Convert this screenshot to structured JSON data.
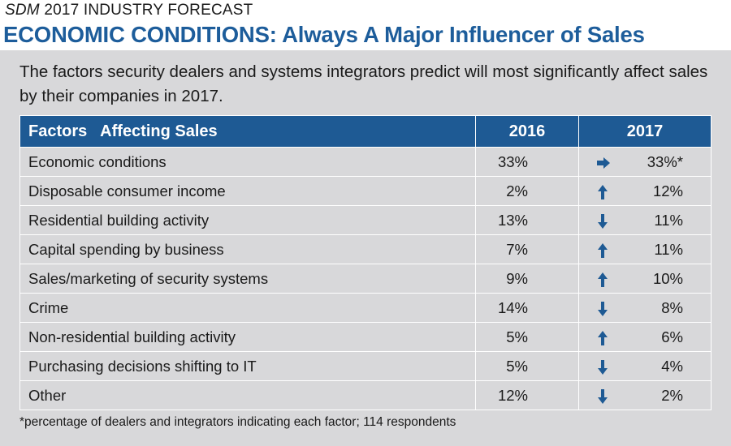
{
  "header": {
    "brand": "SDM",
    "kicker": "2017 INDUSTRY FORECAST",
    "title": "ECONOMIC CONDITIONS: Always A Major Influencer of Sales"
  },
  "intro": "The factors security dealers and systems integrators predict will most significantly affect sales by their companies in 2017.",
  "table": {
    "columns": [
      "Factors   Affecting Sales",
      "2016",
      "2017"
    ],
    "rows": [
      {
        "factor": "Economic conditions",
        "y2016": "33%",
        "y2017": "33%*",
        "trend": "flat"
      },
      {
        "factor": "Disposable consumer income",
        "y2016": "2%",
        "y2017": "12%",
        "trend": "up"
      },
      {
        "factor": "Residential building activity",
        "y2016": "13%",
        "y2017": "11%",
        "trend": "down"
      },
      {
        "factor": "Capital spending by business",
        "y2016": "7%",
        "y2017": "11%",
        "trend": "up"
      },
      {
        "factor": "Sales/marketing of security systems",
        "y2016": "9%",
        "y2017": "10%",
        "trend": "up"
      },
      {
        "factor": "Crime",
        "y2016": "14%",
        "y2017": "8%",
        "trend": "down"
      },
      {
        "factor": "Non-residential building activity",
        "y2016": "5%",
        "y2017": "6%",
        "trend": "up"
      },
      {
        "factor": "Purchasing decisions shifting to IT",
        "y2016": "5%",
        "y2017": "4%",
        "trend": "down"
      },
      {
        "factor": "Other",
        "y2016": "12%",
        "y2017": "2%",
        "trend": "down"
      }
    ]
  },
  "footnote": "*percentage of dealers and integrators indicating each factor; 114 respondents"
}
